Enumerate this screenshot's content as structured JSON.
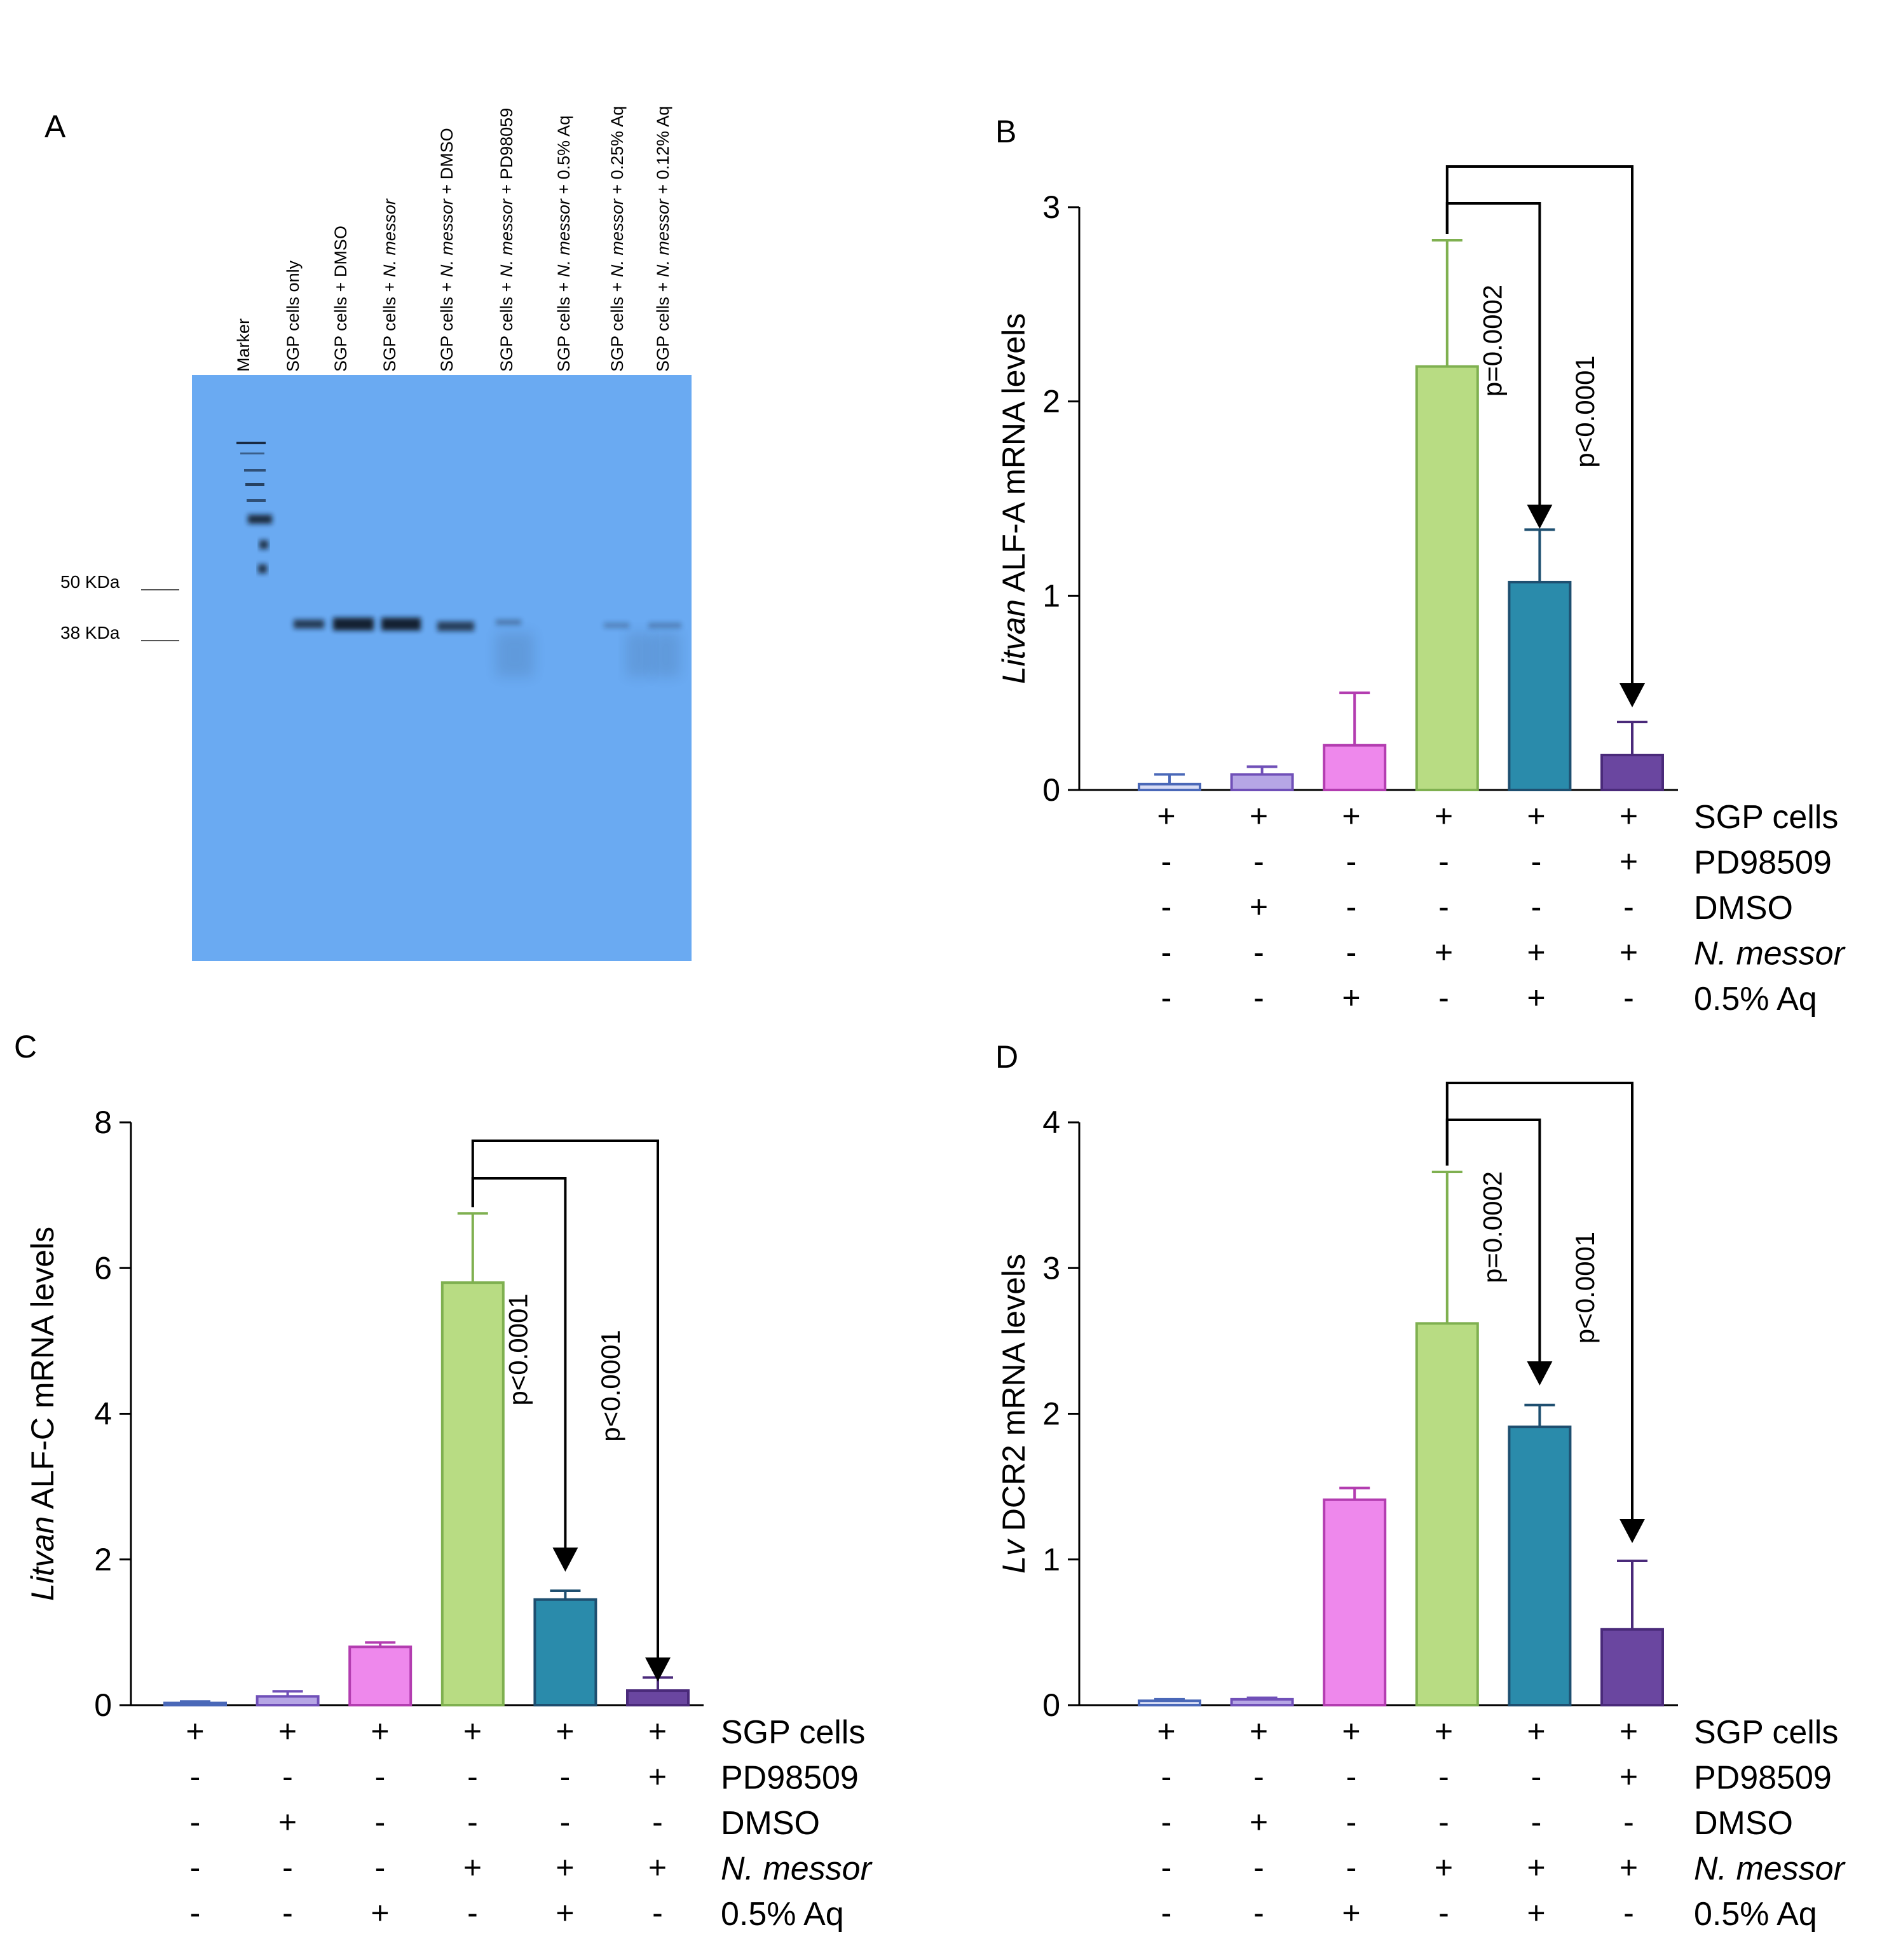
{
  "panels": {
    "A": "A",
    "B": "B",
    "C": "C",
    "D": "D"
  },
  "blot": {
    "lane_labels": [
      {
        "parts": [
          {
            "t": "Marker",
            "i": false
          }
        ]
      },
      {
        "parts": [
          {
            "t": "SGP cells only",
            "i": false
          }
        ]
      },
      {
        "parts": [
          {
            "t": "SGP cells + DMSO",
            "i": false
          }
        ]
      },
      {
        "parts": [
          {
            "t": "SGP cells + ",
            "i": false
          },
          {
            "t": "N. messor",
            "i": true
          }
        ]
      },
      {
        "parts": [
          {
            "t": "SGP cells + ",
            "i": false
          },
          {
            "t": "N. messor",
            "i": true
          },
          {
            "t": " + DMSO",
            "i": false
          }
        ]
      },
      {
        "parts": [
          {
            "t": "SGP cells + ",
            "i": false
          },
          {
            "t": "N. messor",
            "i": true
          },
          {
            "t": " + PD98059",
            "i": false
          }
        ]
      },
      {
        "parts": [
          {
            "t": "SGP cells + ",
            "i": false
          },
          {
            "t": "N. messor",
            "i": true
          },
          {
            "t": " + 0.5% Aq",
            "i": false
          }
        ]
      },
      {
        "parts": [
          {
            "t": "SGP cells + ",
            "i": false
          },
          {
            "t": "N. messor",
            "i": true
          },
          {
            "t": " + 0.25% Aq",
            "i": false
          }
        ]
      },
      {
        "parts": [
          {
            "t": "SGP cells + ",
            "i": false
          },
          {
            "t": "N. messor",
            "i": true
          },
          {
            "t": " + 0.12% Aq",
            "i": false
          }
        ]
      }
    ],
    "markers": [
      "50 KDa",
      "38 KDa"
    ]
  },
  "conditions": {
    "row_labels": [
      "SGP cells",
      "PD98509",
      "DMSO",
      "N. messor",
      "0.5% Aq"
    ],
    "italic_rows": [
      3
    ],
    "matrix": [
      [
        "+",
        "+",
        "+",
        "+",
        "+",
        "+"
      ],
      [
        "-",
        "-",
        "-",
        "-",
        "-",
        "+"
      ],
      [
        "-",
        "+",
        "-",
        "-",
        "-",
        "-"
      ],
      [
        "-",
        "-",
        "-",
        "+",
        "+",
        "+"
      ],
      [
        "-",
        "-",
        "+",
        "-",
        "+",
        "-"
      ]
    ]
  },
  "colors": {
    "bars": [
      "#d7dcf5",
      "#b6a6e5",
      "#ee88ec",
      "#b8dc83",
      "#2a8bab",
      "#6a46a0"
    ],
    "borders": [
      "#4a68b8",
      "#7050b8",
      "#b33db0",
      "#7fb050",
      "#1e4f70",
      "#4a2a7a"
    ],
    "blot_bg": "#6aaaf2"
  },
  "chart_data": [
    {
      "panel": "B",
      "type": "bar",
      "ylabel_italic": "Litvan",
      "ylabel": " ALF-A mRNA levels",
      "ylim": [
        0,
        3
      ],
      "yticks": [
        "0",
        "1",
        "2",
        "3"
      ],
      "values": [
        0.03,
        0.08,
        0.23,
        2.18,
        1.07,
        0.18
      ],
      "errors": [
        0.05,
        0.04,
        0.27,
        0.65,
        0.27,
        0.17
      ],
      "comparisons": [
        {
          "from": 3,
          "to": 4,
          "label": "p=0.0002"
        },
        {
          "from": 3,
          "to": 5,
          "label": "p<0.0001"
        }
      ]
    },
    {
      "panel": "C",
      "type": "bar",
      "ylabel_italic": "Litvan",
      "ylabel": " ALF-C mRNA levels",
      "ylim": [
        0,
        8
      ],
      "yticks": [
        "0",
        "2",
        "4",
        "6",
        "8"
      ],
      "values": [
        0.03,
        0.12,
        0.8,
        5.8,
        1.45,
        0.2
      ],
      "errors": [
        0.02,
        0.07,
        0.06,
        0.95,
        0.12,
        0.18
      ],
      "comparisons": [
        {
          "from": 3,
          "to": 4,
          "label": "p<0.0001"
        },
        {
          "from": 3,
          "to": 5,
          "label": "p<0.0001"
        }
      ]
    },
    {
      "panel": "D",
      "type": "bar",
      "ylabel_italic": "Lv",
      "ylabel": " DCR2 mRNA levels",
      "ylim": [
        0,
        4
      ],
      "yticks": [
        "0",
        "1",
        "2",
        "3",
        "4"
      ],
      "values": [
        0.03,
        0.04,
        1.41,
        2.62,
        1.91,
        0.52
      ],
      "errors": [
        0.01,
        0.01,
        0.08,
        1.04,
        0.15,
        0.47
      ],
      "comparisons": [
        {
          "from": 3,
          "to": 4,
          "label": "p=0.0002"
        },
        {
          "from": 3,
          "to": 5,
          "label": "p<0.0001"
        }
      ]
    }
  ]
}
